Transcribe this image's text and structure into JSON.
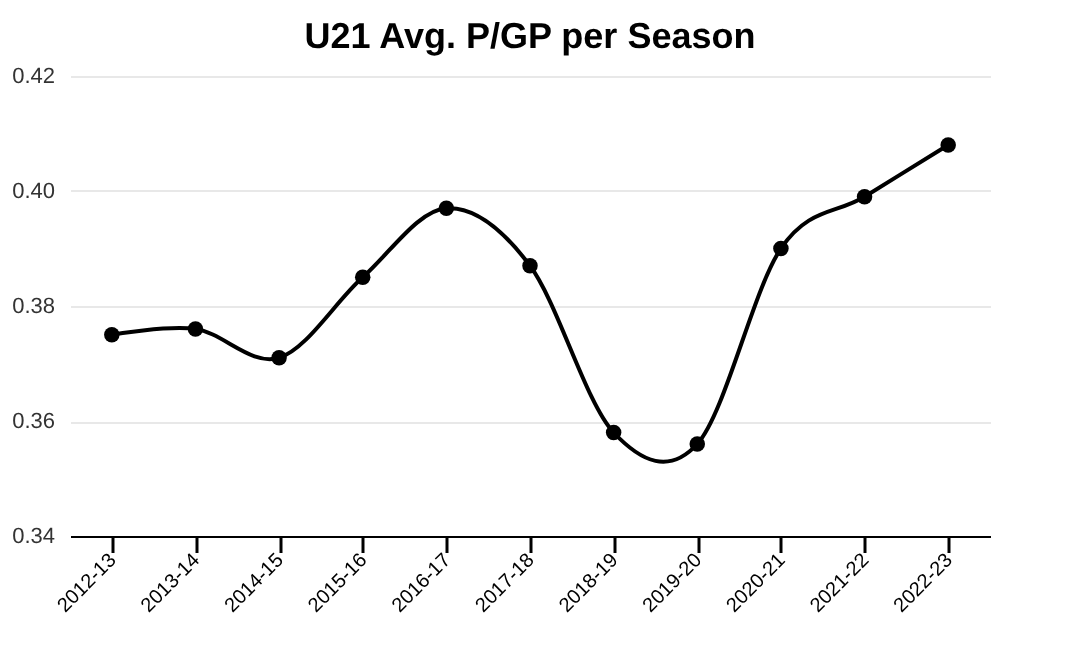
{
  "chart_data": {
    "type": "line",
    "title": "U21 Avg. P/GP per Season",
    "categories": [
      "2012-13",
      "2013-14",
      "2014-15",
      "2015-16",
      "2016-17",
      "2017-18",
      "2018-19",
      "2019-20",
      "2020-21",
      "2021-22",
      "2022-23"
    ],
    "series": [
      {
        "color": "#000000",
        "values": [
          0.375,
          0.376,
          0.371,
          0.385,
          0.397,
          0.387,
          0.358,
          0.356,
          0.39,
          0.399,
          0.408
        ]
      }
    ],
    "ylim": [
      0.34,
      0.42
    ],
    "yticks": [
      {
        "value": 0.34,
        "label": "0.34"
      },
      {
        "value": 0.36,
        "label": "0.36"
      },
      {
        "value": 0.38,
        "label": "0.38"
      },
      {
        "value": 0.4,
        "label": "0.40"
      },
      {
        "value": 0.42,
        "label": "0.42"
      }
    ],
    "grid": "y",
    "marker": "circle",
    "line_style": "solid"
  }
}
